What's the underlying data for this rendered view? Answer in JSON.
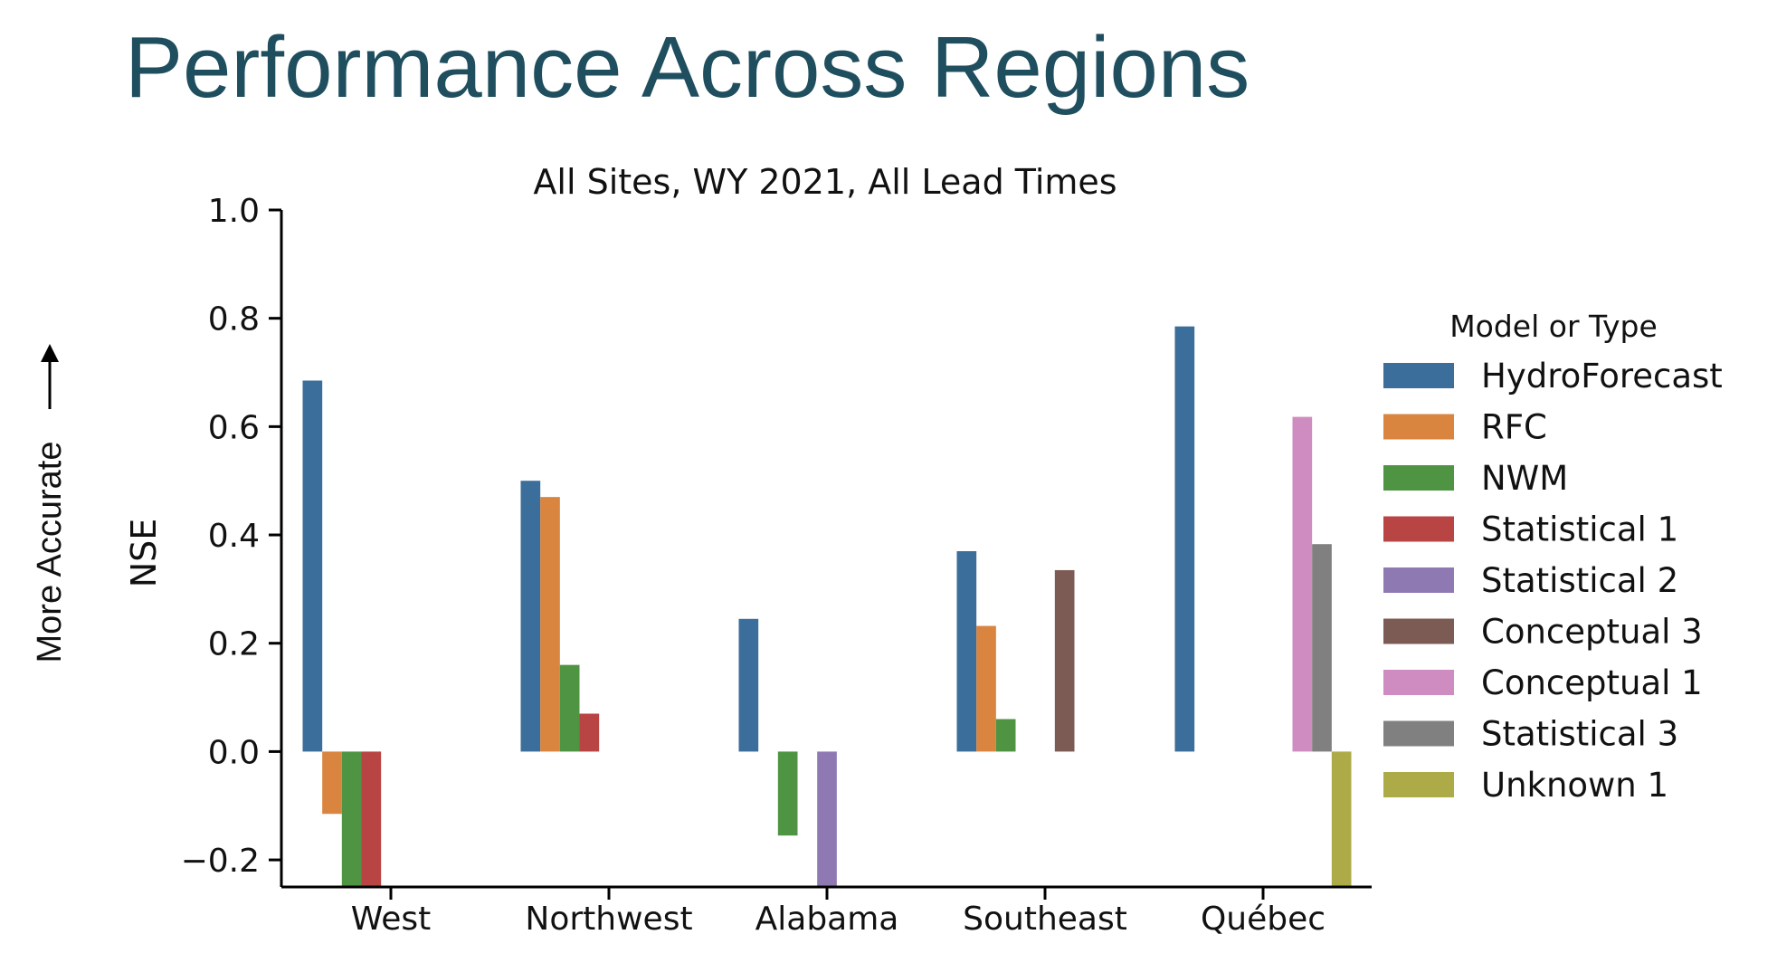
{
  "slide": {
    "title": "Performance Across Regions",
    "side_note": "More Accurate"
  },
  "chart_data": {
    "type": "bar",
    "title": "All Sites, WY 2021, All Lead Times",
    "xlabel": "",
    "ylabel": "NSE",
    "ylim": [
      -0.25,
      1.0
    ],
    "yticks": [
      -0.2,
      0.0,
      0.2,
      0.4,
      0.6,
      0.8,
      1.0
    ],
    "ytick_labels": [
      "−0.2",
      "0.0",
      "0.2",
      "0.4",
      "0.6",
      "0.8",
      "1.0"
    ],
    "categories": [
      "West",
      "Northwest",
      "Alabama",
      "Southeast",
      "Québec"
    ],
    "legend_title": "Model or Type",
    "legend_position": "right",
    "grid": false,
    "series": [
      {
        "name": "HydroForecast",
        "color": "#3b6e9a",
        "values": [
          0.685,
          0.5,
          0.245,
          0.37,
          0.785
        ]
      },
      {
        "name": "RFC",
        "color": "#d9843f",
        "values": [
          -0.115,
          0.47,
          null,
          0.232,
          null
        ]
      },
      {
        "name": "NWM",
        "color": "#4f9443",
        "values": [
          -0.25,
          0.16,
          -0.155,
          0.06,
          null
        ]
      },
      {
        "name": "Statistical 1",
        "color": "#b84544",
        "values": [
          -0.25,
          0.07,
          null,
          null,
          null
        ]
      },
      {
        "name": "Statistical 2",
        "color": "#8f79b3",
        "values": [
          null,
          null,
          -0.25,
          null,
          null
        ]
      },
      {
        "name": "Conceptual 3",
        "color": "#7d5b55",
        "values": [
          null,
          null,
          null,
          0.335,
          null
        ]
      },
      {
        "name": "Conceptual 1",
        "color": "#cf8cc0",
        "values": [
          null,
          null,
          null,
          null,
          0.618
        ]
      },
      {
        "name": "Statistical 3",
        "color": "#808080",
        "values": [
          null,
          null,
          null,
          null,
          0.383
        ]
      },
      {
        "name": "Unknown 1",
        "color": "#adab48",
        "values": [
          null,
          null,
          null,
          null,
          -0.25
        ]
      }
    ]
  }
}
